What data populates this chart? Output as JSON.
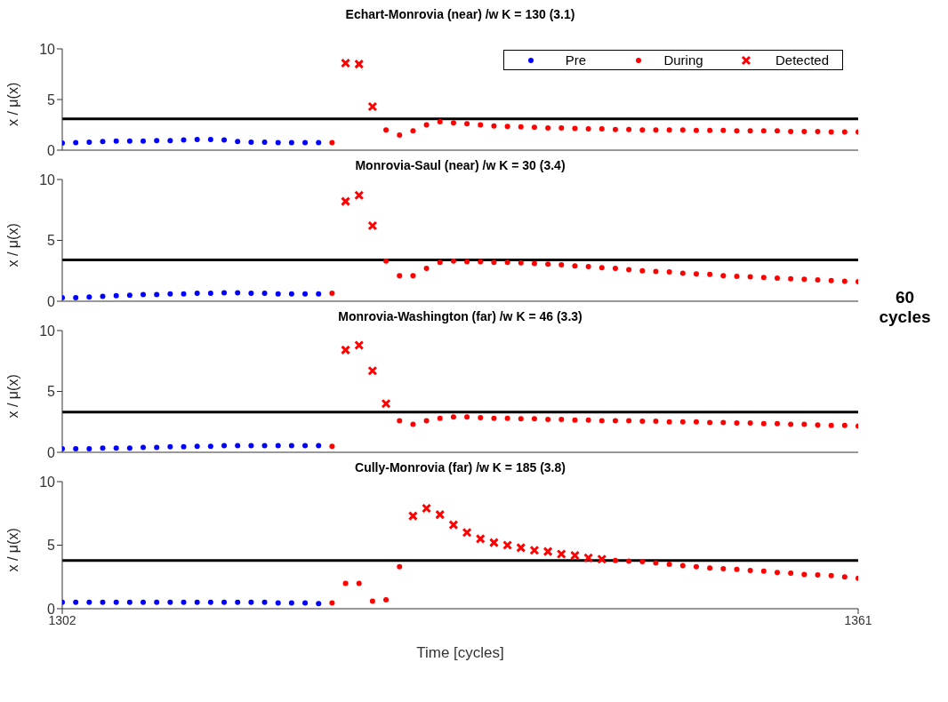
{
  "chart_data": [
    {
      "type": "scatter",
      "title": "Echart-Monrovia (near) /w K = 130 (3.1)",
      "ylabel": "x / μ(x)",
      "xlim": [
        1302,
        1361
      ],
      "ylim": [
        0,
        10
      ],
      "yticks": [
        0,
        5,
        10
      ],
      "tick_labels": "y",
      "legend": "top right",
      "ref_lines": [
        {
          "axis": "y",
          "value": 3.1,
          "color": "#000000"
        }
      ],
      "series": [
        {
          "name": "Pre",
          "color": "#0000ff",
          "marker": "circle",
          "x": [
            1302,
            1303,
            1304,
            1305,
            1306,
            1307,
            1308,
            1309,
            1310,
            1311,
            1312,
            1313,
            1314,
            1315,
            1316,
            1317,
            1318,
            1319,
            1320,
            1321
          ],
          "values": [
            0.7,
            0.75,
            0.8,
            0.85,
            0.9,
            0.9,
            0.9,
            0.95,
            0.95,
            1.0,
            1.05,
            1.05,
            1.0,
            0.85,
            0.8,
            0.8,
            0.75,
            0.75,
            0.75,
            0.75
          ]
        },
        {
          "name": "During",
          "color": "#ff0000",
          "marker": "circle",
          "x": [
            1322,
            1326,
            1327,
            1328,
            1329,
            1330,
            1331,
            1332,
            1333,
            1334,
            1335,
            1336,
            1337,
            1338,
            1339,
            1340,
            1341,
            1342,
            1343,
            1344,
            1345,
            1346,
            1347,
            1348,
            1349,
            1350,
            1351,
            1352,
            1353,
            1354,
            1355,
            1356,
            1357,
            1358,
            1359,
            1360,
            1361
          ],
          "values": [
            0.75,
            2.0,
            1.5,
            1.9,
            2.5,
            2.8,
            2.7,
            2.6,
            2.5,
            2.4,
            2.35,
            2.3,
            2.25,
            2.2,
            2.2,
            2.15,
            2.1,
            2.1,
            2.05,
            2.05,
            2.0,
            2.0,
            2.0,
            2.0,
            1.95,
            1.95,
            1.95,
            1.9,
            1.9,
            1.9,
            1.9,
            1.85,
            1.85,
            1.85,
            1.8,
            1.8,
            1.8
          ]
        },
        {
          "name": "Detected",
          "color": "#ff0000",
          "marker": "cross",
          "x": [
            1323,
            1324,
            1325
          ],
          "values": [
            8.6,
            8.5,
            4.3
          ]
        }
      ]
    },
    {
      "type": "scatter",
      "title": "Monrovia-Saul (near) /w K = 30 (3.4)",
      "ylabel": "x / μ(x)",
      "xlim": [
        1302,
        1361
      ],
      "ylim": [
        0,
        10
      ],
      "yticks": [
        0,
        5,
        10
      ],
      "tick_labels": "y",
      "annotations": [
        "60 cycles"
      ],
      "ref_lines": [
        {
          "axis": "y",
          "value": 3.4,
          "color": "#000000"
        }
      ],
      "series": [
        {
          "color": "#0000ff",
          "marker": "circle",
          "x": [
            1302,
            1303,
            1304,
            1305,
            1306,
            1307,
            1308,
            1309,
            1310,
            1311,
            1312,
            1313,
            1314,
            1315,
            1316,
            1317,
            1318,
            1319,
            1320,
            1321
          ],
          "values": [
            0.3,
            0.3,
            0.35,
            0.4,
            0.45,
            0.5,
            0.55,
            0.55,
            0.6,
            0.6,
            0.65,
            0.65,
            0.7,
            0.7,
            0.65,
            0.65,
            0.6,
            0.6,
            0.6,
            0.6
          ]
        },
        {
          "color": "#ff0000",
          "marker": "circle",
          "x": [
            1322,
            1326,
            1327,
            1328,
            1329,
            1330,
            1331,
            1332,
            1333,
            1334,
            1335,
            1336,
            1337,
            1338,
            1339,
            1340,
            1341,
            1342,
            1343,
            1344,
            1345,
            1346,
            1347,
            1348,
            1349,
            1350,
            1351,
            1352,
            1353,
            1354,
            1355,
            1356,
            1357,
            1358,
            1359,
            1360,
            1361
          ],
          "values": [
            0.65,
            3.3,
            2.1,
            2.1,
            2.7,
            3.2,
            3.3,
            3.25,
            3.25,
            3.2,
            3.2,
            3.15,
            3.1,
            3.05,
            3.0,
            2.9,
            2.85,
            2.75,
            2.7,
            2.6,
            2.5,
            2.45,
            2.4,
            2.3,
            2.25,
            2.2,
            2.1,
            2.05,
            2.0,
            1.95,
            1.9,
            1.85,
            1.8,
            1.75,
            1.7,
            1.65,
            1.6
          ]
        },
        {
          "color": "#ff0000",
          "marker": "cross",
          "x": [
            1323,
            1324,
            1325
          ],
          "values": [
            8.2,
            8.7,
            6.2
          ]
        }
      ]
    },
    {
      "type": "scatter",
      "title": "Monrovia-Washington (far) /w K = 46 (3.3)",
      "ylabel": "x / μ(x)",
      "xlim": [
        1302,
        1361
      ],
      "ylim": [
        0,
        10
      ],
      "yticks": [
        0,
        5,
        10
      ],
      "tick_labels": "y",
      "ref_lines": [
        {
          "axis": "y",
          "value": 3.3,
          "color": "#000000"
        }
      ],
      "series": [
        {
          "color": "#0000ff",
          "marker": "circle",
          "x": [
            1302,
            1303,
            1304,
            1305,
            1306,
            1307,
            1308,
            1309,
            1310,
            1311,
            1312,
            1313,
            1314,
            1315,
            1316,
            1317,
            1318,
            1319,
            1320,
            1321
          ],
          "values": [
            0.3,
            0.3,
            0.3,
            0.35,
            0.35,
            0.35,
            0.4,
            0.4,
            0.45,
            0.45,
            0.5,
            0.5,
            0.55,
            0.55,
            0.55,
            0.55,
            0.55,
            0.55,
            0.55,
            0.55
          ]
        },
        {
          "color": "#ff0000",
          "marker": "circle",
          "x": [
            1322,
            1327,
            1328,
            1329,
            1330,
            1331,
            1332,
            1333,
            1334,
            1335,
            1336,
            1337,
            1338,
            1339,
            1340,
            1341,
            1342,
            1343,
            1344,
            1345,
            1346,
            1347,
            1348,
            1349,
            1350,
            1351,
            1352,
            1353,
            1354,
            1355,
            1356,
            1357,
            1358,
            1359,
            1360,
            1361
          ],
          "values": [
            0.5,
            2.6,
            2.3,
            2.6,
            2.8,
            2.9,
            2.9,
            2.85,
            2.8,
            2.8,
            2.75,
            2.75,
            2.7,
            2.7,
            2.65,
            2.65,
            2.6,
            2.6,
            2.6,
            2.55,
            2.55,
            2.5,
            2.5,
            2.5,
            2.45,
            2.45,
            2.4,
            2.4,
            2.35,
            2.35,
            2.3,
            2.3,
            2.25,
            2.2,
            2.2,
            2.15
          ]
        },
        {
          "color": "#ff0000",
          "marker": "cross",
          "x": [
            1323,
            1324,
            1325,
            1326
          ],
          "values": [
            8.4,
            8.8,
            6.7,
            4.0
          ]
        }
      ]
    },
    {
      "type": "scatter",
      "title": "Cully-Monrovia (far) /w K = 185 (3.8)",
      "xlabel": "Time [cycles]",
      "ylabel": "x / μ(x)",
      "xlim": [
        1302,
        1361
      ],
      "xticks": [
        1302,
        1361
      ],
      "ylim": [
        0,
        10
      ],
      "yticks": [
        0,
        5,
        10
      ],
      "ref_lines": [
        {
          "axis": "y",
          "value": 3.8,
          "color": "#000000"
        }
      ],
      "series": [
        {
          "color": "#0000ff",
          "marker": "circle",
          "x": [
            1302,
            1303,
            1304,
            1305,
            1306,
            1307,
            1308,
            1309,
            1310,
            1311,
            1312,
            1313,
            1314,
            1315,
            1316,
            1317,
            1318,
            1319,
            1320,
            1321
          ],
          "values": [
            0.5,
            0.5,
            0.5,
            0.5,
            0.5,
            0.5,
            0.5,
            0.5,
            0.5,
            0.5,
            0.5,
            0.5,
            0.5,
            0.5,
            0.5,
            0.5,
            0.45,
            0.45,
            0.45,
            0.4
          ]
        },
        {
          "color": "#ff0000",
          "marker": "circle",
          "x": [
            1322,
            1323,
            1324,
            1325,
            1326,
            1327,
            1343,
            1344,
            1345,
            1346,
            1347,
            1348,
            1349,
            1350,
            1351,
            1352,
            1353,
            1354,
            1355,
            1356,
            1357,
            1358,
            1359,
            1360,
            1361
          ],
          "values": [
            0.45,
            2.0,
            2.0,
            0.6,
            0.7,
            3.3,
            3.8,
            3.75,
            3.7,
            3.6,
            3.5,
            3.4,
            3.3,
            3.2,
            3.15,
            3.1,
            3.0,
            2.95,
            2.85,
            2.8,
            2.7,
            2.65,
            2.6,
            2.5,
            2.4
          ]
        },
        {
          "color": "#ff0000",
          "marker": "cross",
          "x": [
            1328,
            1329,
            1330,
            1331,
            1332,
            1333,
            1334,
            1335,
            1336,
            1337,
            1338,
            1339,
            1340,
            1341,
            1342
          ],
          "values": [
            7.3,
            7.9,
            7.4,
            6.6,
            6.0,
            5.5,
            5.2,
            5.0,
            4.8,
            4.6,
            4.5,
            4.3,
            4.2,
            4.0,
            3.9
          ]
        }
      ]
    }
  ]
}
